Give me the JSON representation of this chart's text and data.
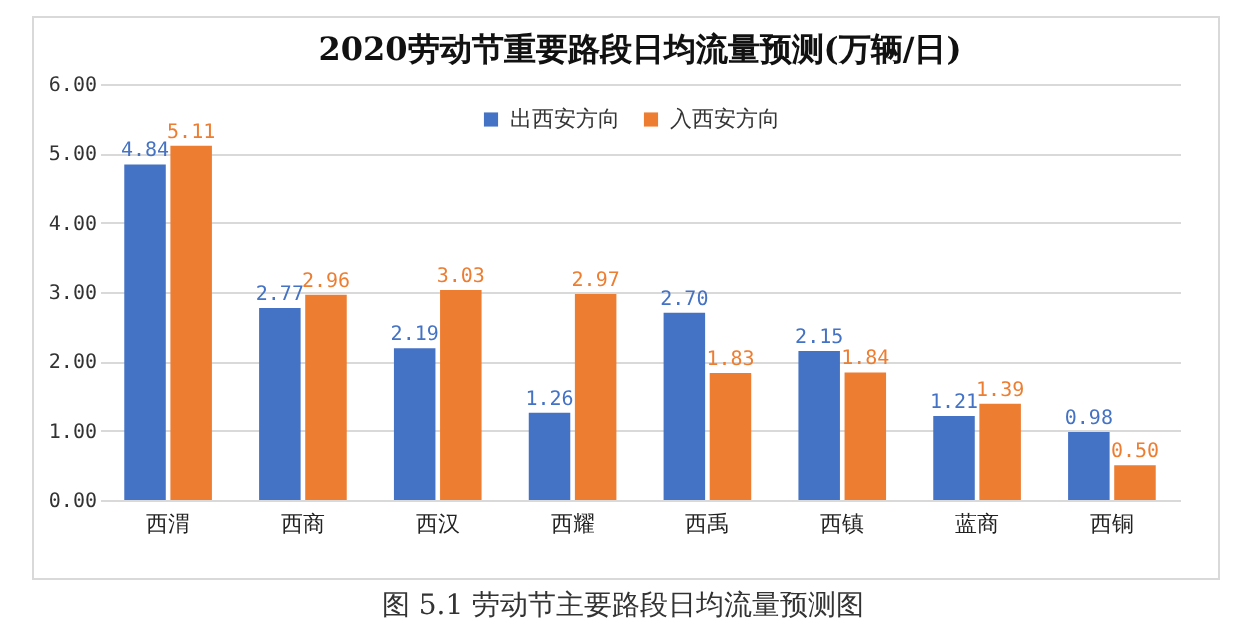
{
  "chart_data": {
    "type": "bar",
    "title": "2020劳动节重要路段日均流量预测(万辆/日)",
    "categories": [
      "西渭",
      "西商",
      "西汉",
      "西耀",
      "西禹",
      "西镇",
      "蓝商",
      "西铜"
    ],
    "series": [
      {
        "name": "出西安方向",
        "color": "#4472c4",
        "values": [
          4.84,
          2.77,
          2.19,
          1.26,
          2.7,
          2.15,
          1.21,
          0.98
        ],
        "value_labels": [
          "4.84",
          "2.77",
          "2.19",
          "1.26",
          "2.70",
          "2.15",
          "1.21",
          "0.98"
        ]
      },
      {
        "name": "入西安方向",
        "color": "#ed7d31",
        "values": [
          5.11,
          2.96,
          3.03,
          2.97,
          1.83,
          1.84,
          1.39,
          0.5
        ],
        "value_labels": [
          "5.11",
          "2.96",
          "3.03",
          "2.97",
          "1.83",
          "1.84",
          "1.39",
          "0.50"
        ]
      }
    ],
    "ylim": [
      0,
      6
    ],
    "yticks": [
      {
        "value": 0,
        "label": "0.00"
      },
      {
        "value": 1,
        "label": "1.00"
      },
      {
        "value": 2,
        "label": "2.00"
      },
      {
        "value": 3,
        "label": "3.00"
      },
      {
        "value": 4,
        "label": "4.00"
      },
      {
        "value": 5,
        "label": "5.00"
      },
      {
        "value": 6,
        "label": "6.00"
      }
    ],
    "grid": "y",
    "legend": "top",
    "annotations": [
      "图 5.1 劳动节主要路段日均流量预测图"
    ]
  }
}
